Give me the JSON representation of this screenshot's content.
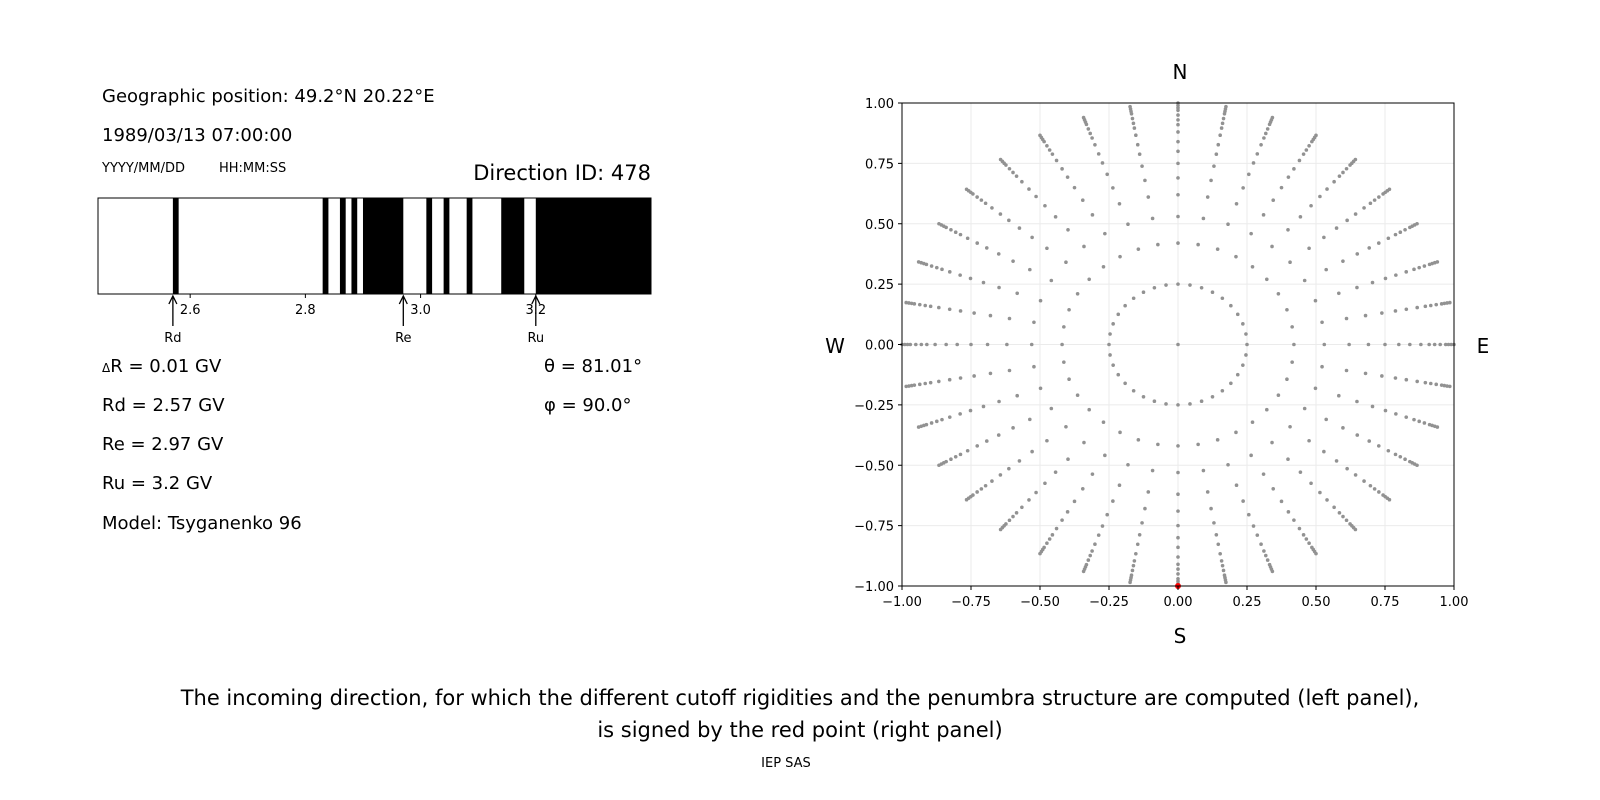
{
  "left_panel": {
    "geo_position": "Geographic position: 49.2°N 20.22°E",
    "datetime": "1989/03/13 07:00:00",
    "date_format": "YYYY/MM/DD",
    "time_format": "HH:MM:SS",
    "direction_id": "Direction ID: 478",
    "delta_r_symbol": "Δ",
    "delta_r": "R = 0.01 GV",
    "rd": "Rd = 2.57 GV",
    "re": "Re = 2.97 GV",
    "ru": "Ru = 3.2 GV",
    "model": "Model: Tsyganenko 96",
    "theta_symbol": "θ",
    "theta": " = 81.01°",
    "phi_symbol": "φ",
    "phi": " = 90.0°"
  },
  "chart_data": [
    {
      "type": "penumbra-bar",
      "xlim": [
        2.44,
        3.4
      ],
      "xticks": [
        2.6,
        2.8,
        3.0,
        3.2
      ],
      "xtick_labels": [
        "2.6",
        "2.8",
        "3.0",
        "3.2"
      ],
      "colors": {
        "forbidden": "#000000",
        "allowed": "#ffffff"
      },
      "forbidden_bands": [
        [
          2.57,
          2.58
        ],
        [
          2.83,
          2.84
        ],
        [
          2.86,
          2.87
        ],
        [
          2.88,
          2.89
        ],
        [
          2.9,
          2.97
        ],
        [
          3.01,
          3.02
        ],
        [
          3.04,
          3.05
        ],
        [
          3.08,
          3.09
        ],
        [
          3.14,
          3.18
        ],
        [
          3.2,
          3.4
        ]
      ],
      "markers": [
        {
          "label": "Rd",
          "value": 2.57
        },
        {
          "label": "Re",
          "value": 2.97
        },
        {
          "label": "Ru",
          "value": 3.2
        }
      ]
    },
    {
      "type": "scatter",
      "xlim": [
        -1,
        1
      ],
      "ylim": [
        -1,
        1
      ],
      "xticks": [
        -1,
        -0.75,
        -0.5,
        -0.25,
        0,
        0.25,
        0.5,
        0.75,
        1
      ],
      "xtick_labels": [
        "−1.00",
        "−0.75",
        "−0.50",
        "−0.25",
        "0.00",
        "0.25",
        "0.50",
        "0.75",
        "1.00"
      ],
      "yticks": [
        -1,
        -0.75,
        -0.5,
        -0.25,
        0,
        0.25,
        0.5,
        0.75,
        1
      ],
      "ytick_labels": [
        "−1.00",
        "−0.75",
        "−0.50",
        "−0.25",
        "0.00",
        "0.25",
        "0.50",
        "0.75",
        "1.00"
      ],
      "grid": true,
      "compass": {
        "north": "N",
        "south": "S",
        "west": "W",
        "east": "E"
      },
      "directions": {
        "azimuth_step_deg": 10,
        "radii": [
          0.25,
          0.42,
          0.53,
          0.62,
          0.69,
          0.75,
          0.8,
          0.84,
          0.88,
          0.91,
          0.93,
          0.95,
          0.97,
          0.98,
          0.99,
          1.0
        ],
        "center": [
          0,
          0
        ],
        "color": "#929292"
      },
      "selected_point": {
        "x": 0.0,
        "y": -1.0,
        "color": "#ff0000"
      }
    }
  ],
  "caption": {
    "line1": "The incoming direction, for which the different cutoff rigidities and the penumbra structure are computed (left panel),",
    "line2": "is signed by the red point (right panel)"
  },
  "footer": "IEP SAS"
}
